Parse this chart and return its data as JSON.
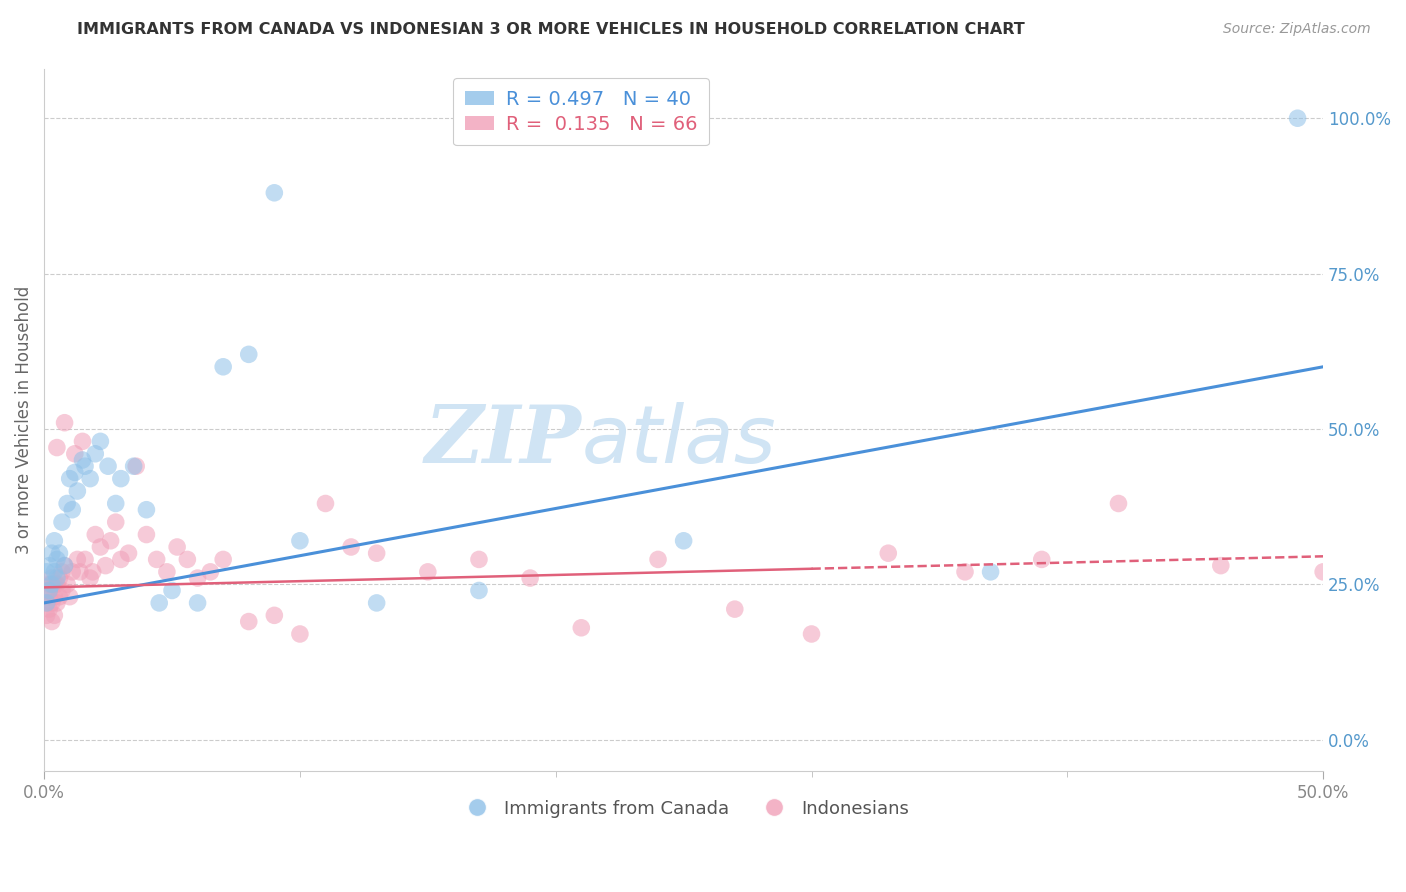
{
  "title": "IMMIGRANTS FROM CANADA VS INDONESIAN 3 OR MORE VEHICLES IN HOUSEHOLD CORRELATION CHART",
  "source": "Source: ZipAtlas.com",
  "ylabel": "3 or more Vehicles in Household",
  "watermark_line1": "ZIP",
  "watermark_line2": "atlas",
  "legend_entries": [
    {
      "label": "Immigrants from Canada",
      "color": "#7ab3e0",
      "R": "0.497",
      "N": "40"
    },
    {
      "label": "Indonesians",
      "color": "#f09ab0",
      "R": "0.135",
      "N": "66"
    }
  ],
  "blue_scatter_x": [
    0.001,
    0.001,
    0.002,
    0.002,
    0.003,
    0.003,
    0.004,
    0.004,
    0.005,
    0.005,
    0.006,
    0.007,
    0.008,
    0.009,
    0.01,
    0.011,
    0.012,
    0.013,
    0.015,
    0.016,
    0.018,
    0.02,
    0.022,
    0.025,
    0.028,
    0.03,
    0.035,
    0.04,
    0.045,
    0.05,
    0.06,
    0.07,
    0.08,
    0.09,
    0.1,
    0.13,
    0.17,
    0.25,
    0.37,
    0.49
  ],
  "blue_scatter_y": [
    0.22,
    0.27,
    0.24,
    0.28,
    0.25,
    0.3,
    0.27,
    0.32,
    0.29,
    0.26,
    0.3,
    0.35,
    0.28,
    0.38,
    0.42,
    0.37,
    0.43,
    0.4,
    0.45,
    0.44,
    0.42,
    0.46,
    0.48,
    0.44,
    0.38,
    0.42,
    0.44,
    0.37,
    0.22,
    0.24,
    0.22,
    0.6,
    0.62,
    0.88,
    0.32,
    0.22,
    0.24,
    0.32,
    0.27,
    1.0
  ],
  "pink_scatter_x": [
    0.001,
    0.001,
    0.001,
    0.002,
    0.002,
    0.002,
    0.003,
    0.003,
    0.003,
    0.004,
    0.004,
    0.004,
    0.005,
    0.005,
    0.005,
    0.006,
    0.006,
    0.007,
    0.007,
    0.008,
    0.008,
    0.009,
    0.01,
    0.011,
    0.012,
    0.013,
    0.014,
    0.015,
    0.016,
    0.018,
    0.019,
    0.02,
    0.022,
    0.024,
    0.026,
    0.028,
    0.03,
    0.033,
    0.036,
    0.04,
    0.044,
    0.048,
    0.052,
    0.056,
    0.06,
    0.065,
    0.07,
    0.08,
    0.09,
    0.1,
    0.11,
    0.12,
    0.13,
    0.15,
    0.17,
    0.19,
    0.21,
    0.24,
    0.27,
    0.3,
    0.33,
    0.36,
    0.39,
    0.42,
    0.46,
    0.5
  ],
  "pink_scatter_y": [
    0.22,
    0.24,
    0.2,
    0.25,
    0.21,
    0.23,
    0.26,
    0.22,
    0.19,
    0.25,
    0.23,
    0.2,
    0.47,
    0.25,
    0.22,
    0.26,
    0.23,
    0.27,
    0.24,
    0.51,
    0.28,
    0.25,
    0.23,
    0.27,
    0.46,
    0.29,
    0.27,
    0.48,
    0.29,
    0.26,
    0.27,
    0.33,
    0.31,
    0.28,
    0.32,
    0.35,
    0.29,
    0.3,
    0.44,
    0.33,
    0.29,
    0.27,
    0.31,
    0.29,
    0.26,
    0.27,
    0.29,
    0.19,
    0.2,
    0.17,
    0.38,
    0.31,
    0.3,
    0.27,
    0.29,
    0.26,
    0.18,
    0.29,
    0.21,
    0.17,
    0.3,
    0.27,
    0.29,
    0.38,
    0.28,
    0.27
  ],
  "xlim": [
    0.0,
    0.5
  ],
  "ylim": [
    -0.05,
    1.08
  ],
  "right_ytick_vals": [
    0.0,
    0.25,
    0.5,
    0.75,
    1.0
  ],
  "right_yticklabels": [
    "0.0%",
    "25.0%",
    "50.0%",
    "75.0%",
    "100.0%"
  ],
  "xtick_vals": [
    0.0,
    0.5
  ],
  "xtick_labels": [
    "0.0%",
    "50.0%"
  ],
  "xtick_minor_vals": [
    0.1,
    0.2,
    0.3,
    0.4
  ],
  "blue_line_color": "#4a90d9",
  "pink_line_color": "#e0607a",
  "blue_scatter_color": "#8ec0e8",
  "pink_scatter_color": "#f0a0b8",
  "grid_color": "#cccccc",
  "bg_color": "#ffffff",
  "title_fontsize": 11.5,
  "axis_label_color": "#666666",
  "right_axis_color": "#5599cc",
  "watermark_color": "#d0e4f4",
  "watermark_fontsize_zip": 58,
  "watermark_fontsize_atlas": 58,
  "blue_line_x0": 0.0,
  "blue_line_y0": 0.22,
  "blue_line_x1": 0.5,
  "blue_line_y1": 0.6,
  "pink_line_x0": 0.0,
  "pink_line_y0": 0.245,
  "pink_line_x1": 0.5,
  "pink_line_y1": 0.295,
  "pink_dash_split": 0.3
}
